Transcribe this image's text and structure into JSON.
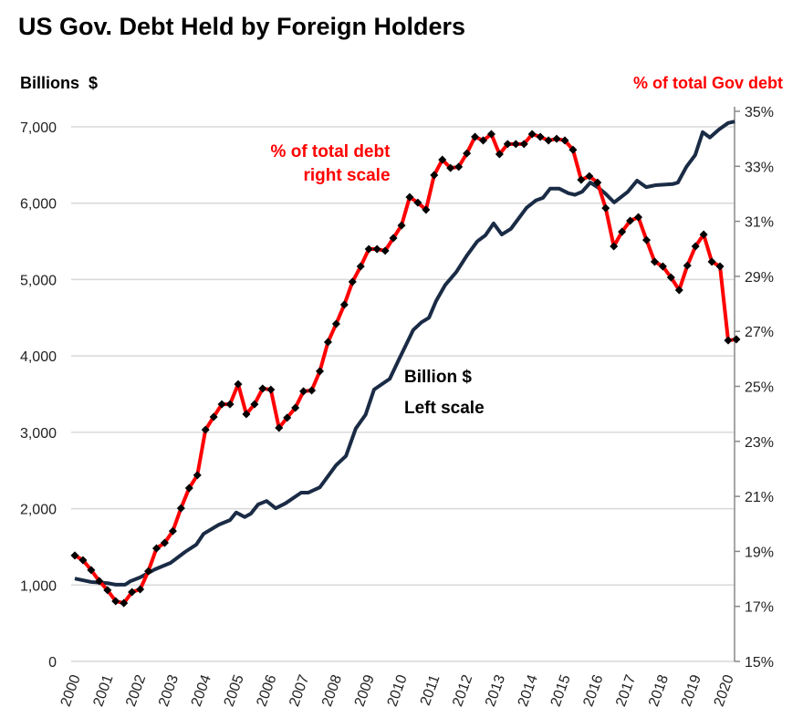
{
  "chart_data": {
    "type": "line",
    "title": "US Gov. Debt Held by Foreign Holders",
    "ylabel_left": "Billions  $",
    "ylabel_right": "% of total Gov debt",
    "colors": {
      "billions": "#1a2b45",
      "percent": "#ff0000",
      "markers": "#000000",
      "grid": "#d9d9d9"
    },
    "x_ticks": [
      "2000",
      "2001",
      "2002",
      "2003",
      "2004",
      "2005",
      "2006",
      "2007",
      "2008",
      "2009",
      "2010",
      "2011",
      "2012",
      "2013",
      "2014",
      "2015",
      "2016",
      "2017",
      "2018",
      "2019",
      "2020"
    ],
    "xlim": [
      2000,
      2020.25
    ],
    "ylim_left": [
      0,
      7000
    ],
    "y_ticks_left": [
      "0",
      "1,000",
      "2,000",
      "3,000",
      "4,000",
      "5,000",
      "6,000",
      "7,000"
    ],
    "ylim_right": [
      15,
      35
    ],
    "y_ticks_right": [
      "15%",
      "17%",
      "19%",
      "21%",
      "23%",
      "25%",
      "27%",
      "29%",
      "31%",
      "33%",
      "35%"
    ],
    "annotations": {
      "percent_line1": "% of total debt",
      "percent_line2": "right scale",
      "billions_line1": "Billion $",
      "billions_line2": "Left scale"
    },
    "series": [
      {
        "name": "Billion $ (left scale)",
        "axis": "left",
        "points": [
          [
            2000.0,
            1085
          ],
          [
            2000.5,
            1040
          ],
          [
            2001.0,
            1025
          ],
          [
            2001.25,
            1005
          ],
          [
            2001.54,
            1005
          ],
          [
            2001.7,
            1050
          ],
          [
            2002.0,
            1100
          ],
          [
            2002.45,
            1205
          ],
          [
            2002.93,
            1290
          ],
          [
            2003.38,
            1435
          ],
          [
            2003.72,
            1530
          ],
          [
            2003.94,
            1670
          ],
          [
            2004.41,
            1790
          ],
          [
            2004.75,
            1850
          ],
          [
            2004.94,
            1950
          ],
          [
            2005.2,
            1890
          ],
          [
            2005.39,
            1935
          ],
          [
            2005.61,
            2055
          ],
          [
            2005.87,
            2100
          ],
          [
            2006.15,
            2005
          ],
          [
            2006.45,
            2070
          ],
          [
            2006.93,
            2210
          ],
          [
            2007.15,
            2210
          ],
          [
            2007.5,
            2280
          ],
          [
            2008.0,
            2570
          ],
          [
            2008.3,
            2690
          ],
          [
            2008.6,
            3050
          ],
          [
            2008.9,
            3230
          ],
          [
            2009.16,
            3560
          ],
          [
            2009.64,
            3700
          ],
          [
            2009.94,
            3970
          ],
          [
            2010.36,
            4340
          ],
          [
            2010.61,
            4440
          ],
          [
            2010.84,
            4500
          ],
          [
            2011.06,
            4720
          ],
          [
            2011.34,
            4930
          ],
          [
            2011.68,
            5100
          ],
          [
            2012.01,
            5320
          ],
          [
            2012.32,
            5500
          ],
          [
            2012.57,
            5580
          ],
          [
            2012.82,
            5735
          ],
          [
            2013.07,
            5590
          ],
          [
            2013.35,
            5665
          ],
          [
            2013.83,
            5940
          ],
          [
            2014.11,
            6035
          ],
          [
            2014.33,
            6070
          ],
          [
            2014.55,
            6190
          ],
          [
            2014.83,
            6190
          ],
          [
            2015.11,
            6130
          ],
          [
            2015.31,
            6110
          ],
          [
            2015.53,
            6150
          ],
          [
            2015.78,
            6270
          ],
          [
            2016.0,
            6210
          ],
          [
            2016.23,
            6130
          ],
          [
            2016.51,
            6010
          ],
          [
            2016.93,
            6150
          ],
          [
            2017.21,
            6295
          ],
          [
            2017.49,
            6210
          ],
          [
            2017.77,
            6235
          ],
          [
            2018.3,
            6250
          ],
          [
            2018.46,
            6270
          ],
          [
            2018.72,
            6475
          ],
          [
            2018.99,
            6630
          ],
          [
            2019.22,
            6930
          ],
          [
            2019.44,
            6860
          ],
          [
            2019.72,
            6965
          ],
          [
            2020.0,
            7050
          ],
          [
            2020.2,
            7070
          ]
        ]
      },
      {
        "name": "% of total debt (right scale)",
        "axis": "right",
        "start": 2000.0,
        "step": 0.25,
        "values": [
          18.85,
          18.68,
          18.32,
          17.92,
          17.59,
          17.19,
          17.12,
          17.52,
          17.62,
          18.28,
          19.11,
          19.31,
          19.74,
          20.57,
          21.3,
          21.77,
          23.42,
          23.89,
          24.35,
          24.35,
          25.08,
          23.99,
          24.35,
          24.92,
          24.88,
          23.49,
          23.86,
          24.22,
          24.82,
          24.85,
          25.55,
          26.61,
          27.27,
          27.97,
          28.8,
          29.36,
          29.99,
          29.99,
          29.93,
          30.39,
          30.85,
          31.88,
          31.68,
          31.42,
          32.68,
          33.24,
          32.94,
          32.98,
          33.47,
          34.07,
          33.94,
          34.17,
          33.44,
          33.81,
          33.81,
          33.81,
          34.17,
          34.07,
          33.94,
          34.0,
          33.94,
          33.6,
          32.51,
          32.64,
          32.41,
          31.48,
          30.09,
          30.62,
          31.02,
          31.15,
          30.32,
          29.53,
          29.36,
          28.96,
          28.5,
          29.39,
          30.09,
          30.52,
          29.53,
          29.36,
          26.67,
          26.71
        ]
      }
    ]
  }
}
